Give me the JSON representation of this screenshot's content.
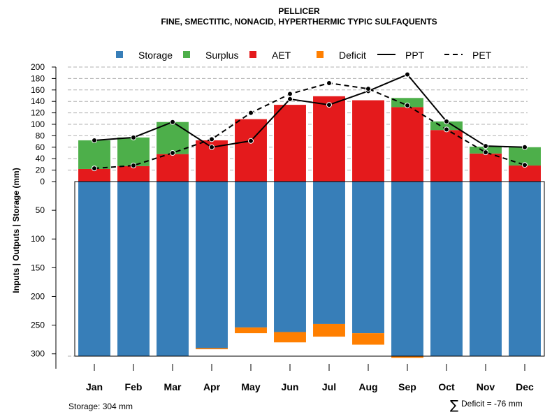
{
  "chart_data": {
    "type": "bar",
    "title": "PELLICER",
    "subtitle": "FINE, SMECTITIC, NONACID, HYPERTHERMIC TYPIC SULFAQUENTS",
    "ylabel": "Inputs | Outputs | Storage     (mm)",
    "categories": [
      "Jan",
      "Feb",
      "Mar",
      "Apr",
      "May",
      "Jun",
      "Jul",
      "Aug",
      "Sep",
      "Oct",
      "Nov",
      "Dec"
    ],
    "upper_ticks": [
      "0",
      "20",
      "40",
      "60",
      "80",
      "100",
      "120",
      "140",
      "160",
      "180",
      "200"
    ],
    "lower_ticks": [
      "50",
      "100",
      "150",
      "200",
      "250",
      "300"
    ],
    "ylim_upper": [
      0,
      200
    ],
    "ylim_lower": [
      0,
      304
    ],
    "legend": {
      "storage": "Storage",
      "surplus": "Surplus",
      "aet": "AET",
      "deficit": "Deficit",
      "ppt": "PPT",
      "pet": "PET"
    },
    "colors": {
      "storage": "#377EB8",
      "surplus": "#4DAF4A",
      "aet": "#E41A1C",
      "deficit": "#FF7F00",
      "line": "#000000"
    },
    "series": [
      {
        "name": "AET",
        "values": [
          22,
          27,
          48,
          72,
          109,
          134,
          149,
          142,
          130,
          90,
          49,
          28
        ]
      },
      {
        "name": "Surplus",
        "values": [
          50,
          50,
          56,
          0,
          0,
          0,
          0,
          0,
          16,
          15,
          12,
          32
        ]
      },
      {
        "name": "Storage",
        "values": [
          304,
          304,
          304,
          290,
          254,
          262,
          248,
          264,
          304,
          304,
          304,
          304
        ]
      },
      {
        "name": "Deficit",
        "values": [
          0,
          0,
          0,
          2,
          10,
          18,
          22,
          20,
          3,
          0,
          0,
          0
        ]
      },
      {
        "name": "PPT",
        "values": [
          72,
          77,
          104,
          60,
          71,
          144,
          134,
          158,
          187,
          105,
          62,
          60
        ]
      },
      {
        "name": "PET",
        "values": [
          23,
          28,
          50,
          74,
          120,
          153,
          172,
          162,
          133,
          91,
          51,
          29
        ]
      }
    ],
    "storage_capacity": 304
  },
  "notes": {
    "storage": "Storage: 304 mm",
    "deficit_symbol": "∑",
    "deficit": "Deficit = -76 mm"
  }
}
